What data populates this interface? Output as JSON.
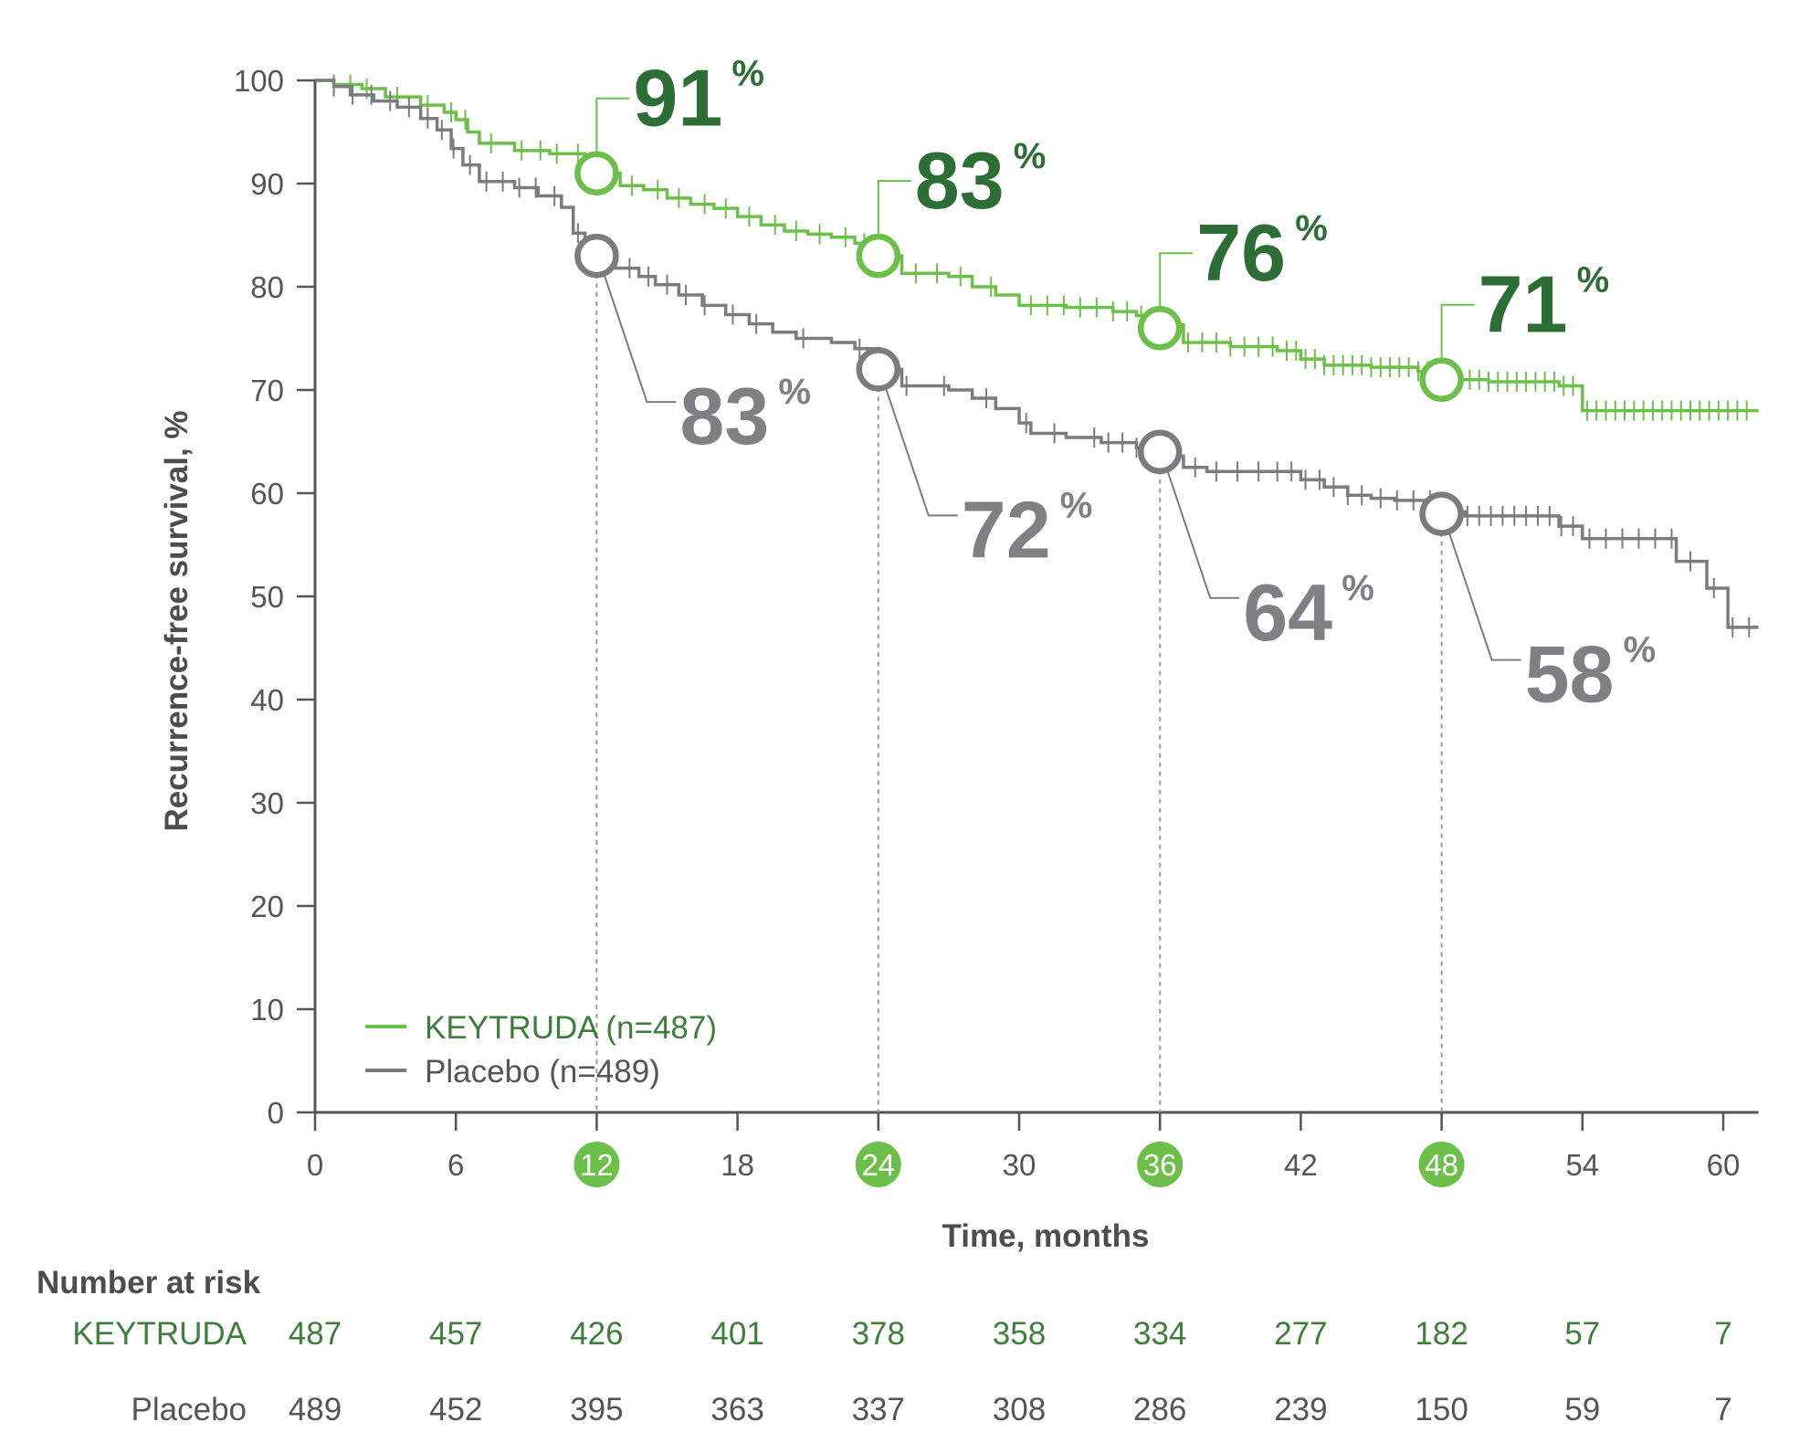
{
  "colors": {
    "keytruda_line": "#6cc04a",
    "keytruda_text": "#2d6e37",
    "keytruda_label": "#3d7f3a",
    "placebo_line": "#7b7b80",
    "placebo_text": "#808084",
    "axis": "#555555",
    "highlight_fill": "#6cc04a"
  },
  "chart_data": {
    "type": "line",
    "title": "",
    "xlabel": "Time, months",
    "ylabel": "Recurrence-free survival, %",
    "xlim": [
      0,
      61.5
    ],
    "ylim": [
      0,
      100
    ],
    "x_ticks": [
      0,
      6,
      12,
      18,
      24,
      30,
      36,
      42,
      48,
      54,
      60
    ],
    "y_ticks": [
      0,
      10,
      20,
      30,
      40,
      50,
      60,
      70,
      80,
      90,
      100
    ],
    "highlighted_x_ticks": [
      12,
      24,
      36,
      48
    ],
    "grid": false,
    "legend_position": "bottom-left",
    "series": [
      {
        "name": "KEYTRUDA (n=487)",
        "color": "#6cc04a",
        "points": [
          [
            0,
            100
          ],
          [
            0.8,
            99.6
          ],
          [
            2,
            99.2
          ],
          [
            3,
            98.4
          ],
          [
            4.5,
            97.6
          ],
          [
            5.5,
            96.9
          ],
          [
            6,
            96.2
          ],
          [
            6.5,
            95
          ],
          [
            7,
            93.9
          ],
          [
            8.5,
            93.2
          ],
          [
            10,
            92.9
          ],
          [
            11.5,
            92.6
          ],
          [
            12,
            91
          ],
          [
            13,
            89.8
          ],
          [
            14,
            89.4
          ],
          [
            15,
            88.6
          ],
          [
            16,
            88
          ],
          [
            17,
            87.6
          ],
          [
            18,
            86.8
          ],
          [
            19,
            86
          ],
          [
            20,
            85.4
          ],
          [
            21,
            85.1
          ],
          [
            22,
            84.8
          ],
          [
            23,
            84.2
          ],
          [
            24,
            83
          ],
          [
            25,
            81.3
          ],
          [
            27,
            81
          ],
          [
            28,
            80
          ],
          [
            29,
            79.2
          ],
          [
            30,
            78.2
          ],
          [
            32,
            78
          ],
          [
            34,
            77.6
          ],
          [
            35,
            77.2
          ],
          [
            36,
            76.3
          ],
          [
            37,
            74.6
          ],
          [
            39,
            74.2
          ],
          [
            41,
            73.8
          ],
          [
            42,
            73
          ],
          [
            43,
            72.4
          ],
          [
            45,
            72.2
          ],
          [
            47,
            71.8
          ],
          [
            48,
            71
          ],
          [
            50,
            70.8
          ],
          [
            53,
            70.4
          ],
          [
            54,
            68
          ],
          [
            61.5,
            68
          ]
        ],
        "censor_x": [
          0.8,
          1.5,
          2.2,
          3.5,
          4.8,
          5.8,
          6.4,
          7.5,
          8.8,
          9.6,
          10.3,
          11.2,
          12.5,
          13.5,
          14.6,
          15.5,
          16.6,
          17.5,
          18.5,
          19.6,
          20.5,
          21.5,
          22.6,
          23.4,
          24.5,
          25.6,
          26.5,
          27.5,
          28.8,
          30.5,
          31.2,
          31.9,
          32.6,
          33.3,
          34,
          34.6,
          35.2,
          36.5,
          37.2,
          37.8,
          38.4,
          39,
          39.6,
          40.2,
          40.8,
          41.4,
          41.8,
          42.2,
          42.6,
          43,
          43.4,
          43.8,
          44.2,
          44.6,
          45,
          45.4,
          45.8,
          46.2,
          46.6,
          47,
          47.4,
          47.8,
          48.4,
          48.8,
          49.2,
          49.6,
          50,
          50.4,
          50.8,
          51.2,
          51.6,
          52,
          52.4,
          52.8,
          53.2,
          53.6,
          54.2,
          54.6,
          55,
          55.4,
          55.8,
          56.2,
          56.6,
          57,
          57.4,
          57.8,
          58.2,
          58.6,
          59,
          59.4,
          59.8,
          60.2,
          60.6,
          61
        ]
      },
      {
        "name": "Placebo (n=489)",
        "color": "#7b7b80",
        "points": [
          [
            0,
            100
          ],
          [
            0.8,
            99.4
          ],
          [
            1.5,
            98.6
          ],
          [
            2.5,
            98
          ],
          [
            3.5,
            97.4
          ],
          [
            4.5,
            96.3
          ],
          [
            5.2,
            95.2
          ],
          [
            5.8,
            93.4
          ],
          [
            6.3,
            91.8
          ],
          [
            7,
            90.2
          ],
          [
            8.5,
            89.6
          ],
          [
            9.5,
            88.8
          ],
          [
            10.5,
            87.7
          ],
          [
            11,
            85.2
          ],
          [
            11.5,
            84
          ],
          [
            12,
            83
          ],
          [
            12.8,
            81.8
          ],
          [
            13.8,
            81
          ],
          [
            14.5,
            80.2
          ],
          [
            15.5,
            79.2
          ],
          [
            16.5,
            78.2
          ],
          [
            17.5,
            77.3
          ],
          [
            18.5,
            76.4
          ],
          [
            19.5,
            75.6
          ],
          [
            20.5,
            75
          ],
          [
            22,
            74.6
          ],
          [
            23,
            74
          ],
          [
            24,
            72
          ],
          [
            25,
            70.4
          ],
          [
            27,
            70
          ],
          [
            28,
            69.2
          ],
          [
            29,
            68.2
          ],
          [
            30,
            66.8
          ],
          [
            30.5,
            65.8
          ],
          [
            32,
            65.4
          ],
          [
            33.5,
            64.9
          ],
          [
            35,
            64.4
          ],
          [
            36,
            63.6
          ],
          [
            37,
            62.5
          ],
          [
            38,
            62.1
          ],
          [
            41,
            62.1
          ],
          [
            42,
            61.3
          ],
          [
            43,
            60.6
          ],
          [
            44,
            59.8
          ],
          [
            45,
            59.5
          ],
          [
            46,
            59.3
          ],
          [
            48,
            58.2
          ],
          [
            49,
            57.8
          ],
          [
            52,
            57.8
          ],
          [
            53,
            56.8
          ],
          [
            54,
            55.6
          ],
          [
            58,
            53.4
          ],
          [
            59.3,
            50.8
          ],
          [
            60.2,
            47
          ],
          [
            61.5,
            47
          ]
        ],
        "censor_x": [
          0.8,
          1.6,
          2.4,
          3.2,
          4,
          4.8,
          5.4,
          5.9,
          6.6,
          7.3,
          8,
          8.7,
          9.4,
          10.2,
          11.2,
          12.6,
          13.4,
          14.2,
          15,
          15.8,
          16.6,
          17.8,
          18.8,
          20.8,
          23.2,
          25.2,
          26.8,
          28.6,
          30.3,
          31.5,
          33.2,
          33.8,
          34.4,
          35,
          35.5,
          37.5,
          38.4,
          39.3,
          40.2,
          41,
          41.6,
          42.2,
          42.8,
          43.4,
          44,
          44.6,
          45.4,
          46.1,
          46.8,
          47.5,
          48.5,
          49.1,
          49.6,
          50.1,
          50.6,
          51.1,
          51.6,
          52.1,
          52.6,
          53.1,
          53.6,
          54.3,
          55,
          55.7,
          56.4,
          57.1,
          57.8,
          58.6,
          59.6,
          60.4,
          61.1
        ]
      }
    ],
    "callouts": [
      {
        "series": "KEYTRUDA",
        "x": 12,
        "y": 91,
        "value": "91",
        "unit": "%"
      },
      {
        "series": "KEYTRUDA",
        "x": 24,
        "y": 83,
        "value": "83",
        "unit": "%"
      },
      {
        "series": "KEYTRUDA",
        "x": 36,
        "y": 76,
        "value": "76",
        "unit": "%"
      },
      {
        "series": "KEYTRUDA",
        "x": 48,
        "y": 71,
        "value": "71",
        "unit": "%"
      },
      {
        "series": "Placebo",
        "x": 12,
        "y": 83,
        "value": "83",
        "unit": "%"
      },
      {
        "series": "Placebo",
        "x": 24,
        "y": 72,
        "value": "72",
        "unit": "%"
      },
      {
        "series": "Placebo",
        "x": 36,
        "y": 64,
        "value": "64",
        "unit": "%"
      },
      {
        "series": "Placebo",
        "x": 48,
        "y": 58,
        "value": "58",
        "unit": "%"
      }
    ]
  },
  "risk_table": {
    "title": "Number at risk",
    "rows": [
      {
        "label": "KEYTRUDA",
        "values": [
          "487",
          "457",
          "426",
          "401",
          "378",
          "358",
          "334",
          "277",
          "182",
          "57",
          "7"
        ]
      },
      {
        "label": "Placebo",
        "values": [
          "489",
          "452",
          "395",
          "363",
          "337",
          "308",
          "286",
          "239",
          "150",
          "59",
          "7"
        ]
      }
    ]
  }
}
